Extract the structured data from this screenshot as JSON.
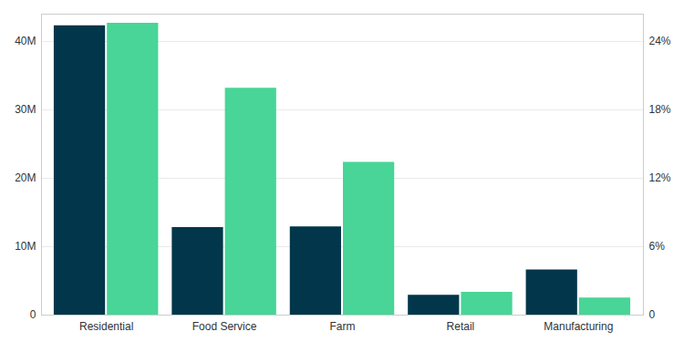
{
  "chart_data": {
    "type": "bar",
    "categories": [
      "Residential",
      "Food Service",
      "Farm",
      "Retail",
      "Manufacturing"
    ],
    "series": [
      {
        "color": "#02364a",
        "values": [
          42300000,
          12800000,
          12900000,
          2900000,
          6600000
        ]
      },
      {
        "color": "#48d597",
        "values": [
          25.6,
          19.9,
          13.4,
          2.0,
          1.5
        ],
        "axis": "y2"
      }
    ],
    "ylim": [
      0,
      44000000
    ],
    "yticks": [
      0,
      {
        "value": 10000000,
        "label": "10M"
      },
      {
        "value": 20000000,
        "label": "20M"
      },
      {
        "value": 30000000,
        "label": "30M"
      },
      {
        "value": 40000000,
        "label": "40M"
      }
    ],
    "y2lim": [
      0,
      26.4
    ],
    "y2ticks": [
      0,
      {
        "value": 6,
        "label": "6%"
      },
      {
        "value": 12,
        "label": "12%"
      },
      {
        "value": 18,
        "label": "18%"
      },
      {
        "value": 24,
        "label": "24%"
      }
    ],
    "grid": true
  }
}
